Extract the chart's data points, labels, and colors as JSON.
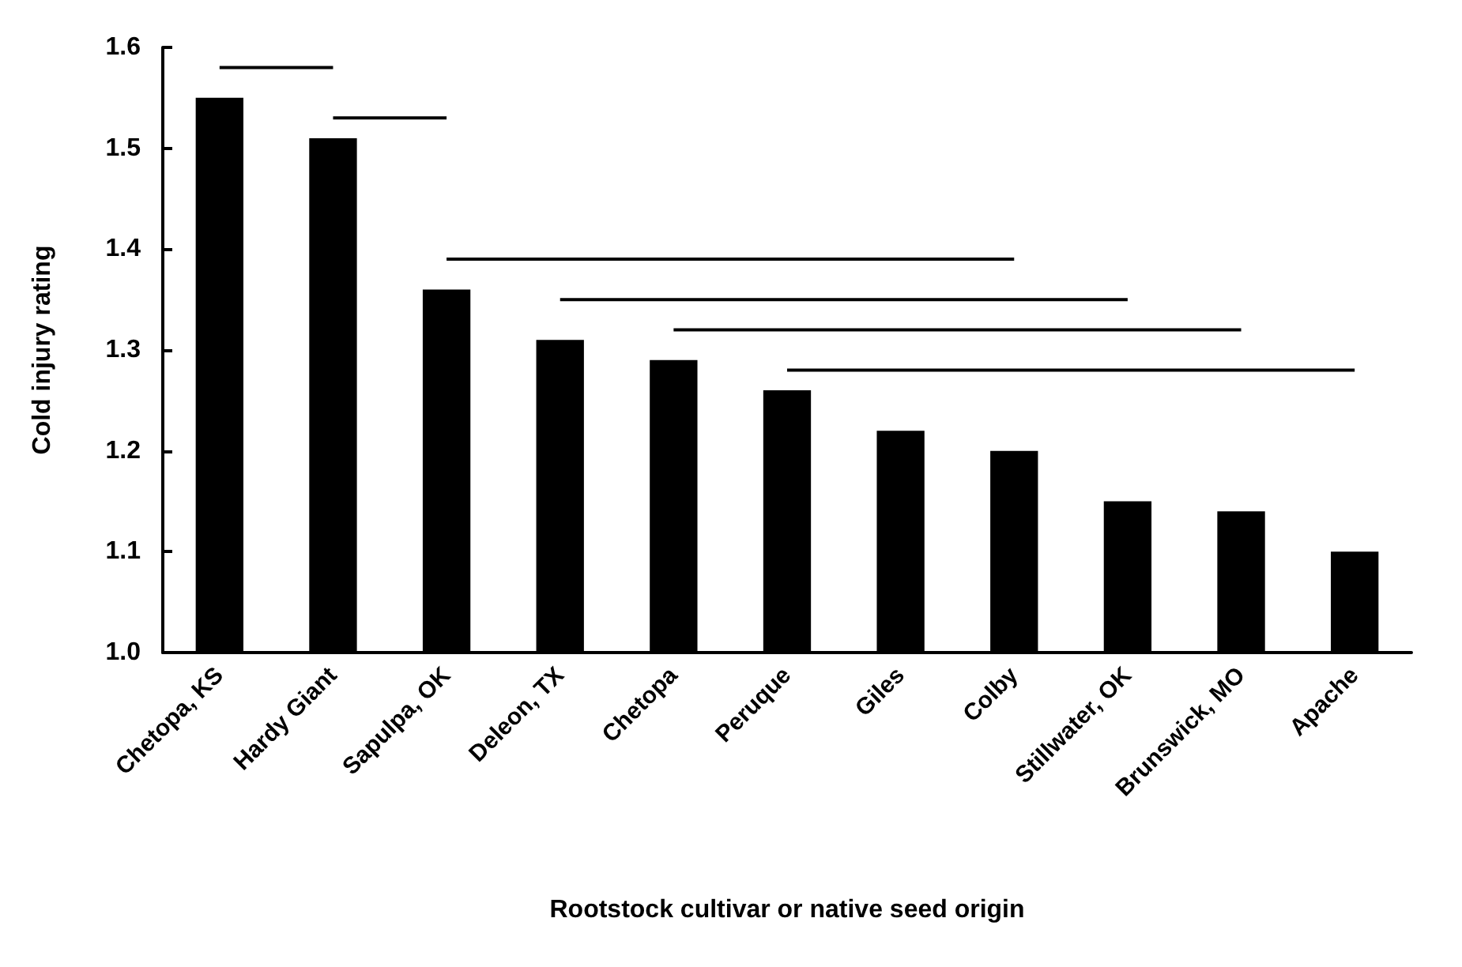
{
  "chart_data": {
    "type": "bar",
    "xlabel": "Rootstock cultivar or native seed origin",
    "ylabel": "Cold injury rating",
    "categories": [
      "Chetopa, KS",
      "Hardy Giant",
      "Sapulpa, OK",
      "Deleon, TX",
      "Chetopa",
      "Peruque",
      "Giles",
      "Colby",
      "Stillwater, OK",
      "Brunswick, MO",
      "Apache"
    ],
    "ylim": [
      1.0,
      1.6
    ],
    "yticks": [
      {
        "value": 1.0,
        "label": "1.0"
      },
      {
        "value": 1.1,
        "label": "1.1"
      },
      {
        "value": 1.2,
        "label": "1.2"
      },
      {
        "value": 1.3,
        "label": "1.3"
      },
      {
        "value": 1.4,
        "label": "1.4"
      },
      {
        "value": 1.5,
        "label": "1.5"
      },
      {
        "value": 1.6,
        "label": "1.6"
      }
    ],
    "grid": false,
    "series": [
      {
        "color": "#000000",
        "values": [
          1.55,
          1.51,
          1.36,
          1.31,
          1.29,
          1.26,
          1.22,
          1.2,
          1.15,
          1.14,
          1.1
        ]
      },
      {
        "type": "line",
        "color": "#000000",
        "values": [
          1.58,
          1.58,
          null,
          null,
          null,
          null,
          null,
          null,
          null,
          null,
          null
        ]
      },
      {
        "type": "line",
        "color": "#000000",
        "values": [
          null,
          1.53,
          1.53,
          null,
          null,
          null,
          null,
          null,
          null,
          null,
          null
        ]
      },
      {
        "type": "line",
        "color": "#000000",
        "values": [
          null,
          null,
          1.39,
          1.39,
          1.39,
          1.39,
          1.39,
          1.39,
          null,
          null,
          null
        ]
      },
      {
        "type": "line",
        "color": "#000000",
        "values": [
          null,
          null,
          null,
          1.35,
          1.35,
          1.35,
          1.35,
          1.35,
          1.35,
          null,
          null
        ]
      },
      {
        "type": "line",
        "color": "#000000",
        "values": [
          null,
          null,
          null,
          null,
          1.32,
          1.32,
          1.32,
          1.32,
          1.32,
          1.32,
          null
        ]
      },
      {
        "type": "line",
        "color": "#000000",
        "values": [
          null,
          null,
          null,
          null,
          null,
          1.28,
          1.28,
          1.28,
          1.28,
          1.28,
          1.28
        ]
      }
    ],
    "marker": "none"
  }
}
